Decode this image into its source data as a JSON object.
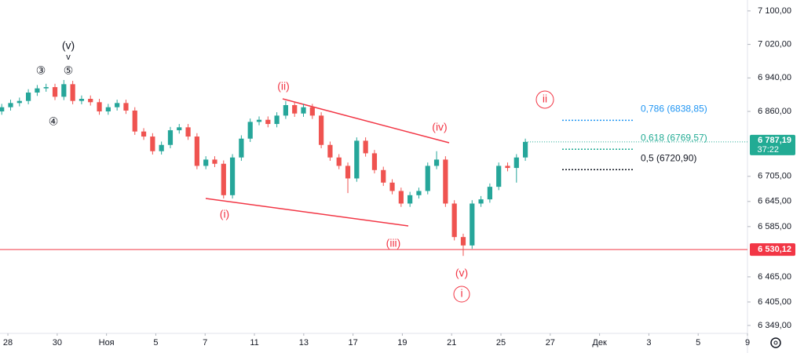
{
  "chart_data": {
    "type": "candlestick",
    "x": [
      -0.25,
      0.11,
      0.47,
      0.83,
      1.19,
      1.55,
      1.91,
      2.27,
      2.63,
      2.99,
      3.35,
      3.71,
      4.07,
      4.43,
      4.79,
      5.15,
      5.51,
      5.87,
      6.23,
      6.59,
      6.95,
      7.31,
      7.67,
      8.03,
      8.39,
      8.75,
      9.11,
      9.47,
      9.83,
      10.19,
      10.55,
      10.91,
      11.27,
      11.63,
      11.99,
      12.35,
      12.71,
      13.07,
      13.43,
      13.79,
      14.15,
      14.51,
      14.87,
      15.23,
      15.59,
      15.95,
      16.31,
      16.67,
      17.03,
      17.39,
      17.75,
      18.11,
      18.47,
      18.83,
      19.19,
      19.55,
      19.91,
      20.27,
      20.63,
      20.99
    ],
    "open": [
      6860,
      6870,
      6880,
      6885,
      6905,
      6915,
      6918,
      6895,
      6925,
      6885,
      6890,
      6882,
      6860,
      6870,
      6880,
      6862,
      6812,
      6800,
      6765,
      6780,
      6815,
      6822,
      6800,
      6730,
      6745,
      6735,
      6660,
      6750,
      6795,
      6835,
      6840,
      6830,
      6850,
      6875,
      6855,
      6870,
      6850,
      6780,
      6750,
      6730,
      6700,
      6790,
      6760,
      6720,
      6690,
      6670,
      6640,
      6660,
      6670,
      6730,
      6745,
      6640,
      6560,
      6540,
      6640,
      6650,
      6680,
      6730,
      6725,
      6750
    ],
    "high": [
      6878,
      6888,
      6893,
      6913,
      6923,
      6926,
      6926,
      6935,
      6933,
      6898,
      6898,
      6890,
      6878,
      6888,
      6888,
      6870,
      6820,
      6808,
      6788,
      6823,
      6830,
      6830,
      6808,
      6753,
      6753,
      6743,
      6758,
      6803,
      6843,
      6848,
      6848,
      6858,
      6885,
      6883,
      6878,
      6878,
      6858,
      6788,
      6758,
      6738,
      6798,
      6798,
      6768,
      6728,
      6698,
      6678,
      6668,
      6678,
      6738,
      6765,
      6753,
      6648,
      6568,
      6648,
      6658,
      6688,
      6738,
      6738,
      6758,
      6795
    ],
    "low": [
      6852,
      6862,
      6872,
      6877,
      6897,
      6907,
      6887,
      6887,
      6877,
      6877,
      6874,
      6852,
      6852,
      6862,
      6854,
      6804,
      6792,
      6757,
      6757,
      6772,
      6807,
      6792,
      6722,
      6722,
      6727,
      6652,
      6652,
      6742,
      6787,
      6827,
      6822,
      6822,
      6842,
      6847,
      6847,
      6842,
      6772,
      6742,
      6722,
      6665,
      6692,
      6752,
      6712,
      6682,
      6662,
      6632,
      6632,
      6652,
      6662,
      6722,
      6632,
      6552,
      6515,
      6532,
      6632,
      6642,
      6672,
      6717,
      6690,
      6742
    ],
    "close": [
      6870,
      6880,
      6885,
      6905,
      6915,
      6918,
      6895,
      6925,
      6885,
      6890,
      6882,
      6860,
      6870,
      6880,
      6862,
      6812,
      6800,
      6765,
      6780,
      6815,
      6822,
      6800,
      6730,
      6745,
      6735,
      6660,
      6750,
      6795,
      6835,
      6840,
      6830,
      6850,
      6875,
      6855,
      6870,
      6850,
      6780,
      6750,
      6730,
      6700,
      6790,
      6760,
      6720,
      6690,
      6670,
      6640,
      6660,
      6670,
      6730,
      6745,
      6640,
      6560,
      6540,
      6640,
      6650,
      6680,
      6730,
      6725,
      6750,
      6787.19
    ],
    "up_color": "#26a69a",
    "down_color": "#ef5350",
    "xlim": [
      -0.32,
      30
    ],
    "xticks": [
      {
        "value": 0,
        "label": "28"
      },
      {
        "value": 2,
        "label": "30"
      },
      {
        "value": 4,
        "label": "Ноя"
      },
      {
        "value": 6,
        "label": "5"
      },
      {
        "value": 8,
        "label": "7"
      },
      {
        "value": 10,
        "label": "11"
      },
      {
        "value": 12,
        "label": "13"
      },
      {
        "value": 14,
        "label": "17"
      },
      {
        "value": 16,
        "label": "19"
      },
      {
        "value": 18,
        "label": "21"
      },
      {
        "value": 20,
        "label": "25"
      },
      {
        "value": 22,
        "label": "27"
      },
      {
        "value": 24,
        "label": "Дек"
      },
      {
        "value": 26,
        "label": "3"
      },
      {
        "value": 28,
        "label": "5"
      },
      {
        "value": 30,
        "label": "9"
      }
    ],
    "ylim": [
      6330,
      7126
    ],
    "yticks": [
      {
        "value": 7100,
        "label": "7 100,00"
      },
      {
        "value": 7020,
        "label": "7 020,00"
      },
      {
        "value": 6940,
        "label": "6 940,00"
      },
      {
        "value": 6860,
        "label": "6 860,00"
      },
      {
        "value": 6705,
        "label": "6 705,00"
      },
      {
        "value": 6645,
        "label": "6 645,00"
      },
      {
        "value": 6585,
        "label": "6 585,00"
      },
      {
        "value": 6465,
        "label": "6 465,00"
      },
      {
        "value": 6405,
        "label": "6 405,00"
      },
      {
        "value": 6349,
        "label": "6 349,00"
      }
    ],
    "hline": {
      "value": 6530.12,
      "label": "6 530,12",
      "color": "#f23645"
    },
    "last_price": {
      "value": 6787.19,
      "label": "6 787,19",
      "countdown": "37:22",
      "color": "#22ab94"
    },
    "fib_levels": [
      {
        "value": 6838.85,
        "label": "0,786 (6838,85)",
        "color": "#2196f3"
      },
      {
        "value": 6769.57,
        "label": "0,618 (6769,57)",
        "color": "#22ab94"
      },
      {
        "value": 6720.9,
        "label": "0,5 (6720,90)",
        "color": "#131722"
      }
    ],
    "annotations": [
      {
        "text": "③",
        "color": "#131722"
      },
      {
        "text": "(v)",
        "color": "#131722"
      },
      {
        "text": "v",
        "color": "#131722"
      },
      {
        "text": "⑤",
        "color": "#131722"
      },
      {
        "text": "④",
        "color": "#131722"
      },
      {
        "text": "(ii)",
        "color": "#f23645"
      },
      {
        "text": "(i)",
        "color": "#f23645"
      },
      {
        "text": "(iv)",
        "color": "#f23645"
      },
      {
        "text": "(iii)",
        "color": "#f23645"
      },
      {
        "text": "(v)",
        "color": "#f23645"
      },
      {
        "text": "i",
        "color": "#f23645"
      },
      {
        "text": "ii",
        "color": "#f23645"
      }
    ]
  }
}
